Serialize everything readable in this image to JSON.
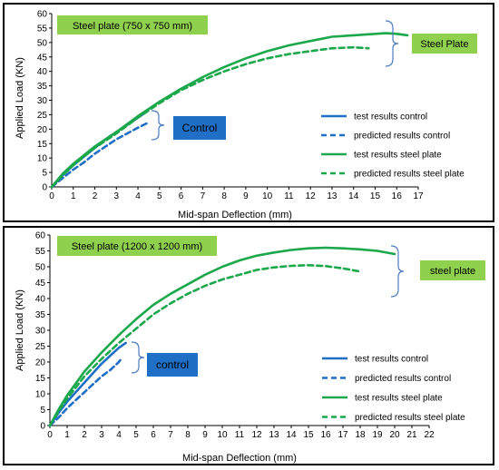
{
  "colors": {
    "blue": "#1f6fc6",
    "green": "#1aa84a",
    "label_green": "#8fd14f",
    "label_blue": "#1f6fc6"
  },
  "chart_data": [
    {
      "type": "line",
      "title": "Steel plate (750 x 750 mm)",
      "xlabel": "Mid-span Deflection    (mm)",
      "ylabel": "Applied Load      (KN)",
      "xlim": [
        0,
        17
      ],
      "ylim": [
        0,
        60
      ],
      "xticks": [
        0,
        1,
        2,
        3,
        4,
        5,
        6,
        7,
        8,
        9,
        10,
        11,
        12,
        13,
        14,
        15,
        16,
        17
      ],
      "yticks": [
        0,
        5,
        10,
        15,
        20,
        25,
        30,
        35,
        40,
        45,
        50,
        55,
        60
      ],
      "annotations": [
        "Control",
        "Steel Plate"
      ],
      "legend_position": "right",
      "series": [
        {
          "name": "test results control",
          "style": "solid",
          "color": "blue",
          "x": [
            0,
            0.5,
            1,
            1.5,
            2,
            2.5,
            3,
            3.5,
            4,
            4.4
          ],
          "y": [
            0,
            4,
            7.5,
            10.5,
            13.5,
            16.5,
            19,
            21.5,
            24,
            26
          ]
        },
        {
          "name": "predicted results control",
          "style": "dashed",
          "color": "blue",
          "x": [
            0,
            0.5,
            1,
            1.5,
            2,
            2.5,
            3,
            3.5,
            4,
            4.4
          ],
          "y": [
            0,
            3,
            6,
            8.5,
            11.5,
            14,
            16.5,
            18.5,
            20.5,
            22
          ]
        },
        {
          "name": "test results steel plate",
          "style": "solid",
          "color": "green",
          "x": [
            0,
            0.5,
            1,
            2,
            3,
            4,
            5,
            6,
            7,
            8,
            9,
            10,
            11,
            12,
            13,
            14,
            15,
            15.5,
            16,
            16.5
          ],
          "y": [
            0,
            4.5,
            8,
            14,
            19,
            24.5,
            29.5,
            34,
            38,
            41.5,
            44.5,
            47,
            49,
            50.5,
            52,
            52.5,
            53,
            53.2,
            53,
            52.5
          ]
        },
        {
          "name": "predicted results steel plate",
          "style": "dashed",
          "color": "green",
          "x": [
            0,
            0.5,
            1,
            2,
            3,
            4,
            5,
            6,
            7,
            8,
            9,
            10,
            11,
            12,
            13,
            14,
            14.7
          ],
          "y": [
            0,
            4,
            7.5,
            13.5,
            18.5,
            24,
            29,
            33.5,
            37,
            40,
            42.5,
            44.5,
            46,
            47,
            48,
            48.3,
            48
          ]
        }
      ]
    },
    {
      "type": "line",
      "title": "Steel plate (1200 x 1200 mm)",
      "xlabel": "Mid-span Deflection    (mm)",
      "ylabel": "Applied Load      (KN)",
      "xlim": [
        0,
        22
      ],
      "ylim": [
        0,
        60
      ],
      "xticks": [
        0,
        1,
        2,
        3,
        4,
        5,
        6,
        7,
        8,
        9,
        10,
        11,
        12,
        13,
        14,
        15,
        16,
        17,
        18,
        19,
        20,
        21,
        22
      ],
      "yticks": [
        0,
        5,
        10,
        15,
        20,
        25,
        30,
        35,
        40,
        45,
        50,
        55,
        60
      ],
      "annotations": [
        "control",
        "steel plate"
      ],
      "legend_position": "right",
      "series": [
        {
          "name": "test results control",
          "style": "solid",
          "color": "blue",
          "x": [
            0,
            0.5,
            1,
            1.5,
            2,
            2.5,
            3,
            3.5,
            4,
            4.4
          ],
          "y": [
            0,
            4,
            7.5,
            10.5,
            13.5,
            16.5,
            19.5,
            22,
            24.5,
            26
          ]
        },
        {
          "name": "predicted results control",
          "style": "dashed",
          "color": "blue",
          "x": [
            0,
            0.5,
            1,
            1.5,
            2,
            2.5,
            3,
            3.5,
            4,
            4.2
          ],
          "y": [
            0,
            2.5,
            5.5,
            8,
            10.5,
            13,
            15.5,
            17.5,
            20,
            21.5
          ]
        },
        {
          "name": "test results steel plate",
          "style": "solid",
          "color": "green",
          "x": [
            0,
            0.5,
            1,
            2,
            3,
            4,
            5,
            6,
            7,
            8,
            9,
            10,
            11,
            12,
            13,
            14,
            15,
            16,
            17,
            18,
            19,
            20
          ],
          "y": [
            0,
            5,
            9.5,
            17,
            23,
            28.5,
            33.5,
            38,
            41.5,
            44.5,
            47.5,
            50,
            52,
            53.5,
            54.5,
            55.3,
            55.8,
            56,
            55.8,
            55.5,
            55,
            54
          ]
        },
        {
          "name": "predicted results steel plate",
          "style": "dashed",
          "color": "green",
          "x": [
            0,
            0.5,
            1,
            2,
            3,
            4,
            5,
            6,
            7,
            8,
            9,
            10,
            11,
            12,
            13,
            14,
            15,
            16,
            17,
            18
          ],
          "y": [
            0,
            4.5,
            8.5,
            15.5,
            21,
            26,
            30.5,
            35,
            38.5,
            41.5,
            44,
            46,
            47.5,
            49,
            49.8,
            50.3,
            50.5,
            50.2,
            49.5,
            48.5
          ]
        }
      ]
    }
  ]
}
